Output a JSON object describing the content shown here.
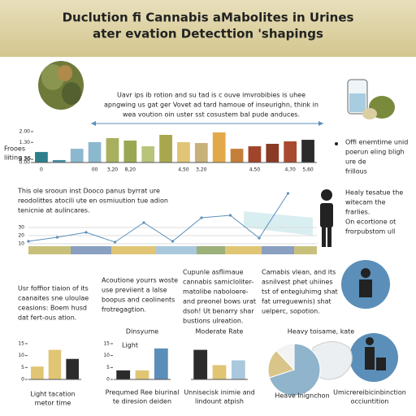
{
  "header": {
    "title": [
      "Duclution fi Cannabis aMabolites in Urines",
      "ater evation Detecttion 'shapings"
    ]
  },
  "intro": [
    "Uavr ips ib rotion and su tad is c ouve imvrobibies is uhee",
    "apngwing us gat ger Vovet ad tard hamoue of inseurighn, think in",
    "wea voution oin uster  sst cosustem bal pude anduces."
  ],
  "side_label": [
    "Frooes",
    "liiting ss"
  ],
  "middle_text": [
    "This  ole srooun inst Dooco panus byrrat ure",
    "reodolittes atocili ute en osmiuution tue adion",
    "tenicnie at aulincares."
  ],
  "right_notes": [
    [
      "Offi enemtime unid",
      "poerun eling bligh",
      "ure de",
      "frillous"
    ],
    [
      "Healy tesatue the",
      "witecam the",
      "frarlies."
    ],
    [
      "On ecortione ot",
      "frorpubstom ull"
    ]
  ],
  "columns": [
    [
      "Usr foffior tiaion of its",
      "caanaites sne uloulae",
      "ceasions: Boem husd",
      "dat fert-ous ation."
    ],
    [
      "Acoutione yourrs woste",
      "use previient a lalse",
      "boopus and ceolinents",
      "frotregagtion."
    ],
    [
      "Cupunle asflimaue",
      "cannabis samicloliter-",
      "matolibe naboloere-",
      "and preonel bows urat",
      "dsoh! Ut benarry shar",
      "bustions ulreation."
    ],
    [
      "Camabis vlean, and its",
      "asnilvest phet uhiines",
      "tst of entegiuhimg shat",
      "fat urreguewnis) shat",
      "uelperc, sopotion."
    ]
  ],
  "chart_data": [
    {
      "type": "bar",
      "categories": [
        "0",
        null,
        null,
        "00",
        "3,20",
        "8,20",
        null,
        null,
        "4,50",
        "3,20",
        null,
        null,
        "4,50",
        null,
        "4,70",
        "5,60"
      ],
      "values": [
        0.68,
        0.16,
        0.89,
        1.32,
        1.58,
        1.42,
        1.05,
        1.79,
        1.32,
        1.26,
        1.95,
        0.89,
        1.05,
        1.21,
        1.37,
        1.47
      ],
      "colors": [
        "#2e7f8c",
        "#4a90a8",
        "#8cb8cf",
        "#8cb8cf",
        "#a8b060",
        "#9aa853",
        "#b8c47a",
        "#a7a84e",
        "#e0c574",
        "#c8b07a",
        "#e3a948",
        "#c4803a",
        "#a0452b",
        "#8a3a25",
        "#a84a30",
        "#2b2b2b"
      ],
      "ylim": [
        0,
        2
      ],
      "yticks": [
        {
          "value": 0,
          "label": "0.00"
        },
        {
          "value": 0.2,
          "label": "0.20"
        },
        {
          "value": 1.3,
          "label": "1.30"
        },
        {
          "value": 2,
          "label": "2.00"
        }
      ]
    },
    {
      "type": "line",
      "x": [
        0,
        1,
        2,
        3,
        4,
        5,
        6,
        7,
        8,
        9
      ],
      "xlim": [
        0,
        10
      ],
      "values": [
        13,
        18,
        24,
        12,
        36,
        13,
        42,
        45,
        17,
        72
      ],
      "color": "#5b8fb9",
      "ylim": [
        0,
        80
      ],
      "yticks": [
        10,
        20,
        30
      ]
    },
    {
      "type": "bar",
      "categories": [
        null,
        null,
        null
      ],
      "values": [
        5.4,
        12.4,
        8.6
      ],
      "colors": [
        "#e0c574",
        "#e0c574",
        "#2b2b2b"
      ],
      "ylim": [
        0,
        16
      ],
      "yticks": [
        0,
        5,
        10,
        15
      ],
      "label": [
        "Light tacation",
        "metor time"
      ]
    },
    {
      "type": "bar",
      "categories": [
        null,
        null,
        null
      ],
      "values": [
        3.8,
        3.8,
        13
      ],
      "colors": [
        "#2b2b2b",
        "#e0c574",
        "#5b8fb9"
      ],
      "ylim": [
        0,
        16
      ],
      "yticks": [
        0,
        5,
        10,
        15
      ],
      "title": "Dinsyume",
      "subtitle": "Light",
      "label": [
        "Prequmed Ree biurinal",
        "te diresion deiden"
      ]
    },
    {
      "type": "bar",
      "categories": [
        null,
        null,
        null
      ],
      "values": [
        12.4,
        6,
        8
      ],
      "colors": [
        "#2b2b2b",
        "#e0c574",
        "#a9c8dc"
      ],
      "ylim": [
        0,
        16
      ],
      "yticks": [],
      "title": "Moderate Rate",
      "label": [
        "Unnisecisk inimie and",
        "lindount atpish"
      ]
    },
    {
      "type": "pie",
      "values": [
        70,
        18,
        12
      ],
      "colors": [
        "#8fb4cc",
        "#d9c58a",
        "#f3f3f3"
      ],
      "title": "Heavy toisame, kate",
      "label": [
        "Heave Inignchon"
      ]
    }
  ],
  "icon_caption": [
    "Umicrereibicinbinction",
    "occiuntition"
  ]
}
